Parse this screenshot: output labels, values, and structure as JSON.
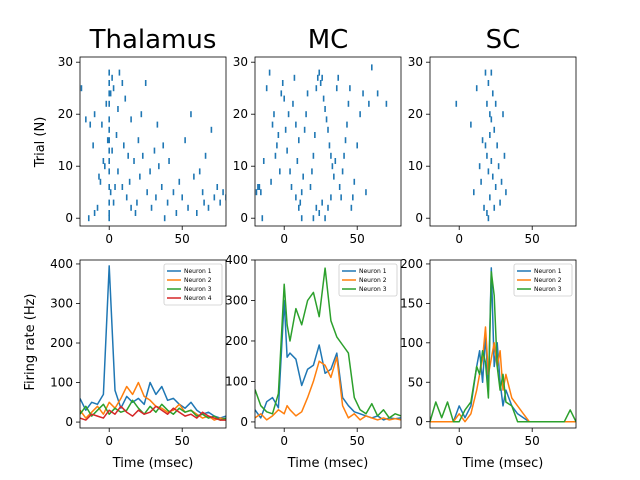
{
  "colors": {
    "raster": "#1f77b4",
    "neuron1": "#1f77b4",
    "neuron2": "#ff7f0e",
    "neuron3": "#2ca02c",
    "neuron4": "#d62728"
  },
  "chart_data": [
    {
      "type": "scatter",
      "panel": "raster-thalamus",
      "title": "Thalamus",
      "ylabel": "Trial (N)",
      "xlim": [
        -20,
        80
      ],
      "ylim": [
        -1.5,
        31
      ],
      "xticks": [
        "0",
        "50"
      ],
      "yticks": [
        "0",
        "10",
        "20",
        "30"
      ],
      "spikes": [
        [
          -19,
          25
        ],
        [
          -16,
          19
        ],
        [
          -13,
          18
        ],
        [
          -11,
          14
        ],
        [
          -10,
          20
        ],
        [
          -8,
          2
        ],
        [
          -6,
          7
        ],
        [
          -4,
          11
        ],
        [
          -1,
          15
        ],
        [
          0,
          28
        ],
        [
          1,
          24
        ],
        [
          2,
          27
        ],
        [
          3,
          25
        ],
        [
          5,
          16
        ],
        [
          7,
          28
        ],
        [
          9,
          26
        ],
        [
          11,
          23
        ],
        [
          13,
          12
        ],
        [
          15,
          19
        ],
        [
          -14,
          0
        ],
        [
          -10,
          1
        ],
        [
          -7,
          8
        ],
        [
          -3,
          10
        ],
        [
          1,
          5
        ],
        [
          3,
          3
        ],
        [
          6,
          9
        ],
        [
          9,
          6
        ],
        [
          12,
          4
        ],
        [
          15,
          2
        ],
        [
          18,
          1
        ],
        [
          -5,
          18
        ],
        [
          -2,
          22
        ],
        [
          2,
          13
        ],
        [
          4,
          6
        ],
        [
          6,
          21
        ],
        [
          10,
          14
        ],
        [
          14,
          7
        ],
        [
          17,
          11
        ],
        [
          20,
          15
        ],
        [
          22,
          20
        ],
        [
          25,
          26
        ],
        [
          19,
          3
        ],
        [
          21,
          8
        ],
        [
          23,
          12
        ],
        [
          26,
          5
        ],
        [
          28,
          9
        ],
        [
          29,
          2
        ],
        [
          31,
          13
        ],
        [
          32,
          4
        ],
        [
          33,
          18
        ],
        [
          34,
          10
        ],
        [
          36,
          6
        ],
        [
          37,
          14
        ],
        [
          38,
          0
        ],
        [
          40,
          3
        ],
        [
          41,
          11
        ],
        [
          44,
          5
        ],
        [
          46,
          1
        ],
        [
          48,
          7
        ],
        [
          50,
          4
        ],
        [
          52,
          15
        ],
        [
          54,
          2
        ],
        [
          56,
          20
        ],
        [
          58,
          8
        ],
        [
          60,
          1
        ],
        [
          62,
          9
        ],
        [
          64,
          5
        ],
        [
          65,
          3
        ],
        [
          66,
          12
        ],
        [
          68,
          2
        ],
        [
          70,
          17
        ],
        [
          72,
          4
        ],
        [
          74,
          6
        ],
        [
          76,
          3
        ],
        [
          78,
          5
        ],
        [
          80,
          4
        ],
        [
          0,
          0
        ],
        [
          0,
          1
        ],
        [
          0,
          3
        ],
        [
          0,
          6
        ],
        [
          0,
          9
        ],
        [
          0,
          11
        ],
        [
          0,
          13
        ],
        [
          0,
          15
        ],
        [
          0,
          17
        ],
        [
          0,
          19
        ],
        [
          0,
          22
        ],
        [
          0,
          24
        ],
        [
          0,
          26
        ]
      ]
    },
    {
      "type": "scatter",
      "panel": "raster-mc",
      "title": "MC",
      "xlim": [
        -20,
        80
      ],
      "ylim": [
        -1.5,
        31
      ],
      "xticks": [
        "0",
        "50"
      ],
      "yticks": [
        "0",
        "10",
        "20",
        "30"
      ],
      "spikes": [
        [
          -19,
          5
        ],
        [
          -18,
          6
        ],
        [
          -17,
          6
        ],
        [
          -16,
          5
        ],
        [
          -15,
          0
        ],
        [
          -14,
          11
        ],
        [
          -12,
          25
        ],
        [
          -10,
          28
        ],
        [
          -9,
          7
        ],
        [
          -8,
          18
        ],
        [
          -7,
          20
        ],
        [
          -6,
          12
        ],
        [
          -5,
          14
        ],
        [
          -4,
          16
        ],
        [
          -3,
          9
        ],
        [
          -2,
          24
        ],
        [
          -1,
          26
        ],
        [
          0,
          23
        ],
        [
          1,
          17
        ],
        [
          2,
          13
        ],
        [
          3,
          20
        ],
        [
          4,
          9
        ],
        [
          5,
          6
        ],
        [
          6,
          22
        ],
        [
          7,
          27
        ],
        [
          8,
          18
        ],
        [
          9,
          11
        ],
        [
          10,
          15
        ],
        [
          11,
          3
        ],
        [
          12,
          5
        ],
        [
          13,
          8
        ],
        [
          14,
          17
        ],
        [
          15,
          20
        ],
        [
          16,
          24
        ],
        [
          18,
          6
        ],
        [
          19,
          9
        ],
        [
          20,
          12
        ],
        [
          21,
          16
        ],
        [
          22,
          25
        ],
        [
          23,
          27
        ],
        [
          24,
          28
        ],
        [
          25,
          26
        ],
        [
          26,
          27
        ],
        [
          27,
          23
        ],
        [
          28,
          21
        ],
        [
          29,
          19
        ],
        [
          30,
          17
        ],
        [
          31,
          14
        ],
        [
          32,
          12
        ],
        [
          33,
          10
        ],
        [
          34,
          8
        ],
        [
          35,
          11
        ],
        [
          36,
          25
        ],
        [
          37,
          27
        ],
        [
          38,
          6
        ],
        [
          39,
          4
        ],
        [
          40,
          9
        ],
        [
          41,
          12
        ],
        [
          42,
          15
        ],
        [
          43,
          18
        ],
        [
          44,
          22
        ],
        [
          45,
          25
        ],
        [
          46,
          2
        ],
        [
          47,
          4
        ],
        [
          48,
          7
        ],
        [
          50,
          14
        ],
        [
          52,
          20
        ],
        [
          54,
          24
        ],
        [
          56,
          5
        ],
        [
          58,
          22
        ],
        [
          60,
          29
        ],
        [
          64,
          24
        ],
        [
          70,
          22
        ],
        [
          24,
          1
        ],
        [
          26,
          3
        ],
        [
          28,
          0
        ],
        [
          30,
          2
        ],
        [
          32,
          4
        ],
        [
          20,
          0
        ],
        [
          22,
          2
        ],
        [
          12,
          0
        ],
        [
          10,
          2
        ],
        [
          8,
          4
        ]
      ]
    },
    {
      "type": "scatter",
      "panel": "raster-sc",
      "title": "SC",
      "xlim": [
        -20,
        80
      ],
      "ylim": [
        -1.5,
        31
      ],
      "xticks": [
        "0",
        "50"
      ],
      "yticks": [
        "0",
        "10",
        "20",
        "30"
      ],
      "spikes": [
        [
          -2,
          22
        ],
        [
          8,
          18
        ],
        [
          10,
          5
        ],
        [
          12,
          25
        ],
        [
          14,
          10
        ],
        [
          15,
          7
        ],
        [
          16,
          15
        ],
        [
          17,
          2
        ],
        [
          18,
          28
        ],
        [
          18,
          14
        ],
        [
          19,
          1
        ],
        [
          19,
          12
        ],
        [
          20,
          0
        ],
        [
          20,
          9
        ],
        [
          21,
          20
        ],
        [
          21,
          4
        ],
        [
          22,
          28
        ],
        [
          22,
          11
        ],
        [
          23,
          24
        ],
        [
          23,
          8
        ],
        [
          24,
          2
        ],
        [
          24,
          17
        ],
        [
          25,
          6
        ],
        [
          25,
          22
        ],
        [
          26,
          14
        ],
        [
          27,
          10
        ],
        [
          28,
          3
        ],
        [
          29,
          7
        ],
        [
          30,
          20
        ],
        [
          31,
          12
        ],
        [
          32,
          5
        ],
        [
          20,
          26
        ],
        [
          19,
          22
        ],
        [
          21,
          16
        ],
        [
          22,
          19
        ]
      ]
    },
    {
      "type": "line",
      "panel": "rate-thalamus",
      "ylabel": "Firing rate (Hz)",
      "xlabel": "Time (msec)",
      "xlim": [
        -20,
        80
      ],
      "ylim": [
        -15,
        410
      ],
      "xticks": [
        "0",
        "50"
      ],
      "yticks": [
        "0",
        "100",
        "200",
        "300",
        "400"
      ],
      "legend": "top-right",
      "x": [
        -20,
        -16,
        -12,
        -8,
        -4,
        0,
        4,
        8,
        12,
        16,
        20,
        24,
        28,
        32,
        36,
        40,
        44,
        48,
        52,
        56,
        60,
        64,
        68,
        72,
        76,
        80
      ],
      "series": [
        {
          "name": "Neuron 1",
          "values": [
            60,
            30,
            50,
            45,
            70,
            395,
            80,
            35,
            65,
            50,
            60,
            45,
            100,
            70,
            90,
            55,
            60,
            45,
            35,
            50,
            30,
            20,
            25,
            15,
            10,
            15
          ]
        },
        {
          "name": "Neuron 2",
          "values": [
            30,
            10,
            25,
            40,
            20,
            50,
            35,
            60,
            90,
            70,
            100,
            65,
            55,
            40,
            35,
            25,
            30,
            45,
            25,
            30,
            20,
            10,
            15,
            5,
            10,
            8
          ]
        },
        {
          "name": "Neuron 3",
          "values": [
            20,
            40,
            15,
            30,
            45,
            20,
            35,
            25,
            30,
            55,
            35,
            20,
            40,
            25,
            45,
            30,
            20,
            35,
            25,
            30,
            15,
            20,
            10,
            15,
            5,
            10
          ]
        },
        {
          "name": "Neuron 4",
          "values": [
            10,
            5,
            20,
            15,
            10,
            30,
            20,
            40,
            25,
            15,
            30,
            20,
            25,
            40,
            30,
            20,
            35,
            25,
            15,
            20,
            10,
            25,
            15,
            10,
            5,
            5
          ]
        }
      ]
    },
    {
      "type": "line",
      "panel": "rate-mc",
      "xlabel": "Time (msec)",
      "xlim": [
        -20,
        80
      ],
      "ylim": [
        -15,
        400
      ],
      "xticks": [
        "0",
        "50"
      ],
      "yticks": [
        "0",
        "100",
        "200",
        "300",
        "400"
      ],
      "legend": "top-right",
      "x": [
        -20,
        -16,
        -12,
        -8,
        -4,
        0,
        2,
        4,
        8,
        12,
        16,
        20,
        24,
        28,
        32,
        36,
        40,
        44,
        48,
        52,
        56,
        60,
        64,
        68,
        72,
        76,
        80
      ],
      "series": [
        {
          "name": "Neuron 1",
          "values": [
            30,
            10,
            50,
            60,
            35,
            300,
            160,
            170,
            155,
            90,
            130,
            140,
            190,
            120,
            130,
            170,
            60,
            40,
            25,
            20,
            15,
            10,
            15,
            5,
            10,
            8,
            10
          ]
        },
        {
          "name": "Neuron 2",
          "values": [
            10,
            20,
            5,
            15,
            30,
            20,
            40,
            30,
            15,
            25,
            60,
            100,
            150,
            140,
            110,
            160,
            40,
            10,
            20,
            5,
            15,
            10,
            5,
            10,
            5,
            8,
            5
          ]
        },
        {
          "name": "Neuron 3",
          "values": [
            80,
            40,
            25,
            20,
            70,
            340,
            240,
            200,
            280,
            240,
            300,
            320,
            260,
            380,
            250,
            210,
            190,
            170,
            60,
            30,
            20,
            45,
            15,
            30,
            10,
            20,
            15
          ]
        }
      ]
    },
    {
      "type": "line",
      "panel": "rate-sc",
      "xlabel": "Time (msec)",
      "xlim": [
        -20,
        80
      ],
      "ylim": [
        -8,
        205
      ],
      "xticks": [
        "0",
        "50"
      ],
      "yticks": [
        "0",
        "50",
        "100",
        "150",
        "200"
      ],
      "legend": "top-right",
      "x": [
        -20,
        -16,
        -12,
        -8,
        -4,
        0,
        4,
        8,
        12,
        14,
        16,
        18,
        20,
        22,
        24,
        26,
        28,
        30,
        32,
        36,
        40,
        44,
        48,
        52,
        56,
        60,
        64,
        68,
        72,
        76,
        80
      ],
      "series": [
        {
          "name": "Neuron 1",
          "values": [
            0,
            0,
            0,
            0,
            0,
            20,
            5,
            20,
            70,
            90,
            50,
            110,
            40,
            195,
            70,
            100,
            50,
            20,
            40,
            20,
            10,
            5,
            0,
            0,
            0,
            0,
            0,
            0,
            0,
            0,
            0
          ]
        },
        {
          "name": "Neuron 2",
          "values": [
            0,
            0,
            0,
            0,
            0,
            10,
            0,
            10,
            40,
            60,
            80,
            120,
            60,
            80,
            100,
            70,
            90,
            40,
            60,
            30,
            20,
            10,
            0,
            0,
            0,
            0,
            0,
            0,
            0,
            0,
            0
          ]
        },
        {
          "name": "Neuron 3",
          "values": [
            0,
            25,
            5,
            25,
            0,
            0,
            15,
            25,
            70,
            60,
            90,
            75,
            30,
            190,
            160,
            70,
            40,
            60,
            25,
            20,
            0,
            0,
            0,
            0,
            0,
            0,
            0,
            0,
            0,
            15,
            0
          ]
        }
      ]
    }
  ]
}
